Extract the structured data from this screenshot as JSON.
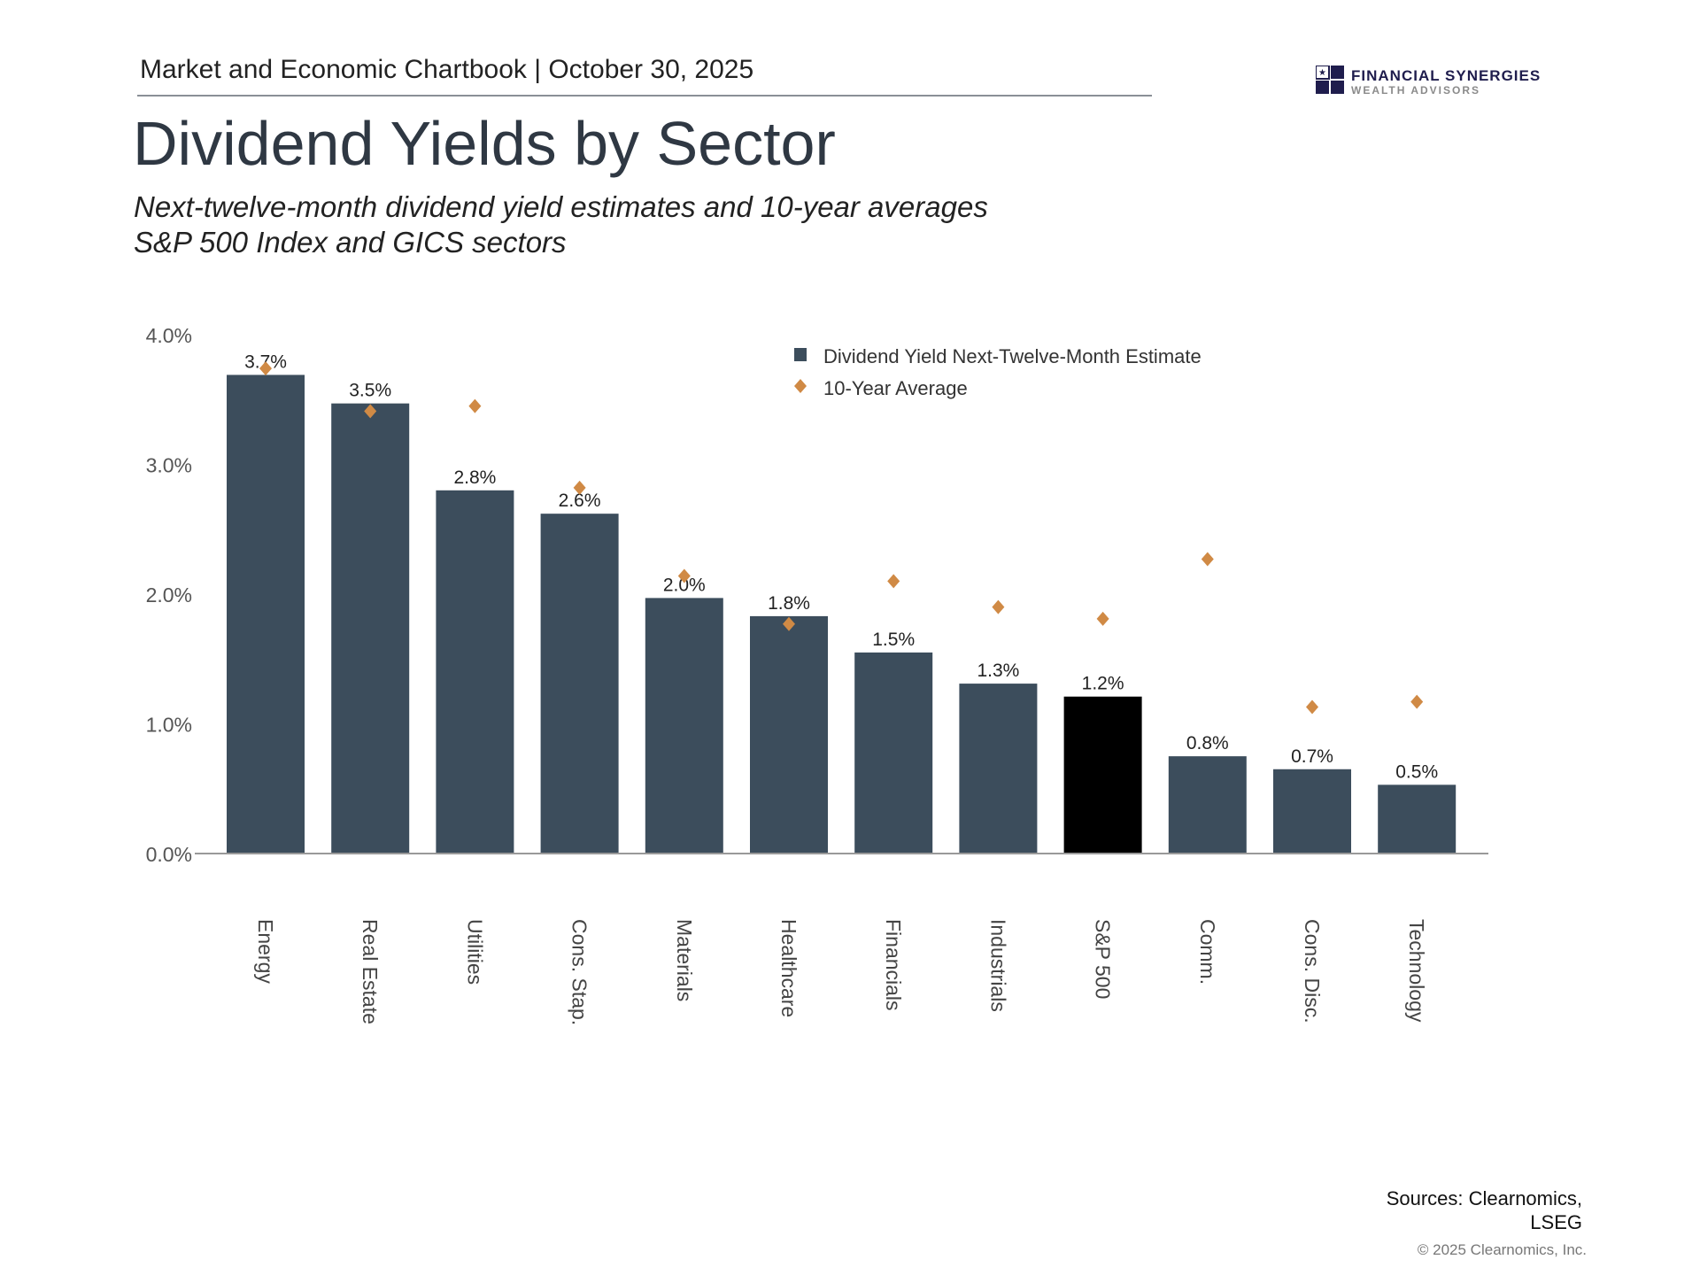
{
  "header": {
    "chartbook": "Market and Economic Chartbook | October 30, 2025",
    "title": "Dividend Yields by Sector",
    "subtitle_line1": "Next-twelve-month dividend yield estimates and 10-year averages",
    "subtitle_line2": "S&P 500 Index and GICS sectors"
  },
  "logo": {
    "name": "FINANCIAL SYNERGIES",
    "tagline": "WEALTH ADVISORS",
    "color": "#1f1d4d"
  },
  "footer": {
    "sources_line1": "Sources: Clearnomics,",
    "sources_line2": "LSEG",
    "copyright": "© 2025 Clearnomics, Inc."
  },
  "chart_data": {
    "type": "bar",
    "categories": [
      "Energy",
      "Real Estate",
      "Utilities",
      "Cons. Stap.",
      "Materials",
      "Healthcare",
      "Financials",
      "Industrials",
      "S&P 500",
      "Comm.",
      "Cons. Disc.",
      "Technology"
    ],
    "series": [
      {
        "name": "Dividend Yield Next-Twelve-Month Estimate",
        "kind": "bar",
        "color": "#3c4d5c",
        "highlight": {
          "S&P 500": "#000000"
        },
        "values": [
          3.69,
          3.47,
          2.8,
          2.62,
          1.97,
          1.83,
          1.55,
          1.31,
          1.21,
          0.75,
          0.65,
          0.53
        ],
        "labels": [
          "3.7%",
          "3.5%",
          "2.8%",
          "2.6%",
          "2.0%",
          "1.8%",
          "1.5%",
          "1.3%",
          "1.2%",
          "0.8%",
          "0.7%",
          "0.5%"
        ]
      },
      {
        "name": "10-Year Average",
        "kind": "diamond",
        "color": "#d08a45",
        "values": [
          3.74,
          3.41,
          3.45,
          2.82,
          2.14,
          1.77,
          2.1,
          1.9,
          1.81,
          2.27,
          1.13,
          1.17
        ]
      }
    ],
    "ylim": [
      0,
      4
    ],
    "yticks": [
      "0.0%",
      "1.0%",
      "2.0%",
      "3.0%",
      "4.0%"
    ],
    "grid": false,
    "legend": "top-right"
  }
}
